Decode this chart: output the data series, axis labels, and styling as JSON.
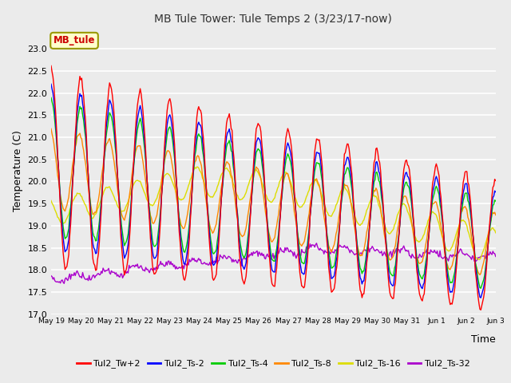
{
  "title": "MB Tule Tower: Tule Temps 2 (3/23/17-now)",
  "xlabel": "Time",
  "ylabel": "Temperature (C)",
  "ylim": [
    17.0,
    23.5
  ],
  "yticks": [
    17.0,
    17.5,
    18.0,
    18.5,
    19.0,
    19.5,
    20.0,
    20.5,
    21.0,
    21.5,
    22.0,
    22.5,
    23.0
  ],
  "bg_color": "#ebebeb",
  "grid_color": "#ffffff",
  "line_colors": {
    "Tul2_Tw+2": "#ff0000",
    "Tul2_Ts-2": "#0000ff",
    "Tul2_Ts-4": "#00cc00",
    "Tul2_Ts-8": "#ff8800",
    "Tul2_Ts-16": "#dddd00",
    "Tul2_Ts-32": "#aa00cc"
  },
  "legend_label": "MB_tule",
  "x_tick_labels": [
    "May 19",
    "May 20",
    "May 21",
    "May 22",
    "May 23",
    "May 24",
    "May 25",
    "May 26",
    "May 27",
    "May 28",
    "May 29",
    "May 30",
    "May 31",
    "Jun 1",
    "Jun 2",
    "Jun 3"
  ],
  "n_points": 480
}
